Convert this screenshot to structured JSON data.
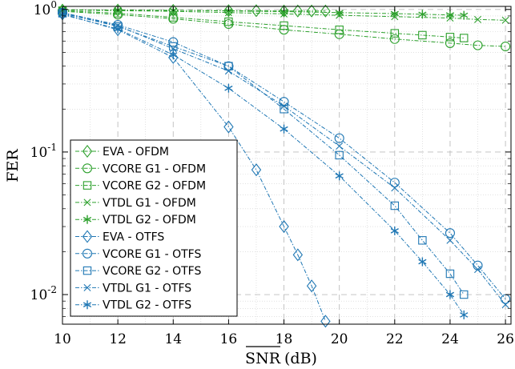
{
  "chart_data": {
    "type": "line",
    "xlabel": "SNR (dB)",
    "xlabel_overline": "SNR",
    "xlabel_unit": "(dB)",
    "ylabel": "FER",
    "xlim": [
      10,
      26.2
    ],
    "ylim": [
      0.0062,
      1.05
    ],
    "yscale": "log",
    "grid": true,
    "legend_position": "bottom-left",
    "x_ticks": [
      10,
      12,
      14,
      16,
      18,
      20,
      22,
      24,
      26
    ],
    "x_tick_labels": [
      "10",
      "12",
      "14",
      "16",
      "18",
      "20",
      "22",
      "24",
      "26"
    ],
    "y_ticks": [
      {
        "value": 1,
        "base": "10",
        "exp": "0"
      },
      {
        "value": 0.1,
        "base": "10",
        "exp": "-1"
      },
      {
        "value": 0.01,
        "base": "10",
        "exp": "-2"
      }
    ],
    "series": [
      {
        "name": "EVA - OFDM",
        "color": "#2ca02c",
        "marker": "diamond",
        "x": [
          10,
          12,
          14,
          16,
          17,
          18,
          18.5,
          19,
          19.5
        ],
        "y": [
          0.99,
          0.99,
          0.985,
          0.98,
          0.98,
          0.975,
          0.975,
          0.975,
          0.975
        ]
      },
      {
        "name": "VCORE G1 - OFDM",
        "color": "#2ca02c",
        "marker": "circle",
        "x": [
          10,
          12,
          14,
          16,
          18,
          20,
          22,
          24,
          25,
          26
        ],
        "y": [
          0.97,
          0.92,
          0.86,
          0.79,
          0.72,
          0.67,
          0.62,
          0.58,
          0.56,
          0.55
        ]
      },
      {
        "name": "VCORE G2 - OFDM",
        "color": "#2ca02c",
        "marker": "square",
        "x": [
          10,
          12,
          14,
          16,
          18,
          20,
          22,
          23,
          24,
          24.5
        ],
        "y": [
          0.98,
          0.94,
          0.88,
          0.82,
          0.77,
          0.72,
          0.68,
          0.66,
          0.64,
          0.63
        ]
      },
      {
        "name": "VTDL G1 - OFDM",
        "color": "#2ca02c",
        "marker": "x",
        "x": [
          10,
          12,
          14,
          16,
          18,
          20,
          22,
          24,
          25,
          26
        ],
        "y": [
          0.99,
          0.98,
          0.97,
          0.95,
          0.93,
          0.91,
          0.89,
          0.87,
          0.85,
          0.84
        ]
      },
      {
        "name": "VTDL G2 - OFDM",
        "color": "#2ca02c",
        "marker": "star",
        "x": [
          10,
          12,
          14,
          16,
          18,
          20,
          22,
          23,
          24,
          24.5
        ],
        "y": [
          0.995,
          0.99,
          0.985,
          0.975,
          0.965,
          0.95,
          0.935,
          0.925,
          0.915,
          0.91
        ]
      },
      {
        "name": "EVA - OTFS",
        "color": "#1f77b4",
        "marker": "diamond",
        "x": [
          10,
          12,
          14,
          16,
          17,
          18,
          18.5,
          19,
          19.5
        ],
        "y": [
          0.93,
          0.72,
          0.46,
          0.15,
          0.075,
          0.03,
          0.019,
          0.0115,
          0.0065
        ]
      },
      {
        "name": "VCORE G1 - OTFS",
        "color": "#1f77b4",
        "marker": "circle",
        "x": [
          10,
          12,
          14,
          16,
          18,
          20,
          22,
          24,
          25,
          26
        ],
        "y": [
          0.95,
          0.78,
          0.59,
          0.4,
          0.225,
          0.125,
          0.061,
          0.027,
          0.016,
          0.0093
        ]
      },
      {
        "name": "VCORE G2 - OTFS",
        "color": "#1f77b4",
        "marker": "square",
        "x": [
          10,
          12,
          14,
          16,
          18,
          20,
          22,
          23,
          24,
          24.5
        ],
        "y": [
          0.94,
          0.76,
          0.55,
          0.4,
          0.2,
          0.095,
          0.042,
          0.024,
          0.014,
          0.01
        ]
      },
      {
        "name": "VTDL G1 - OTFS",
        "color": "#1f77b4",
        "marker": "x",
        "x": [
          10,
          12,
          14,
          16,
          18,
          20,
          22,
          24,
          25,
          26
        ],
        "y": [
          0.94,
          0.77,
          0.53,
          0.37,
          0.21,
          0.11,
          0.056,
          0.024,
          0.015,
          0.0085
        ]
      },
      {
        "name": "VTDL G2 - OTFS",
        "color": "#1f77b4",
        "marker": "star",
        "x": [
          10,
          12,
          14,
          16,
          18,
          20,
          22,
          23,
          24,
          24.5
        ],
        "y": [
          0.92,
          0.73,
          0.48,
          0.28,
          0.145,
          0.068,
          0.028,
          0.017,
          0.01,
          0.0072
        ]
      }
    ]
  }
}
